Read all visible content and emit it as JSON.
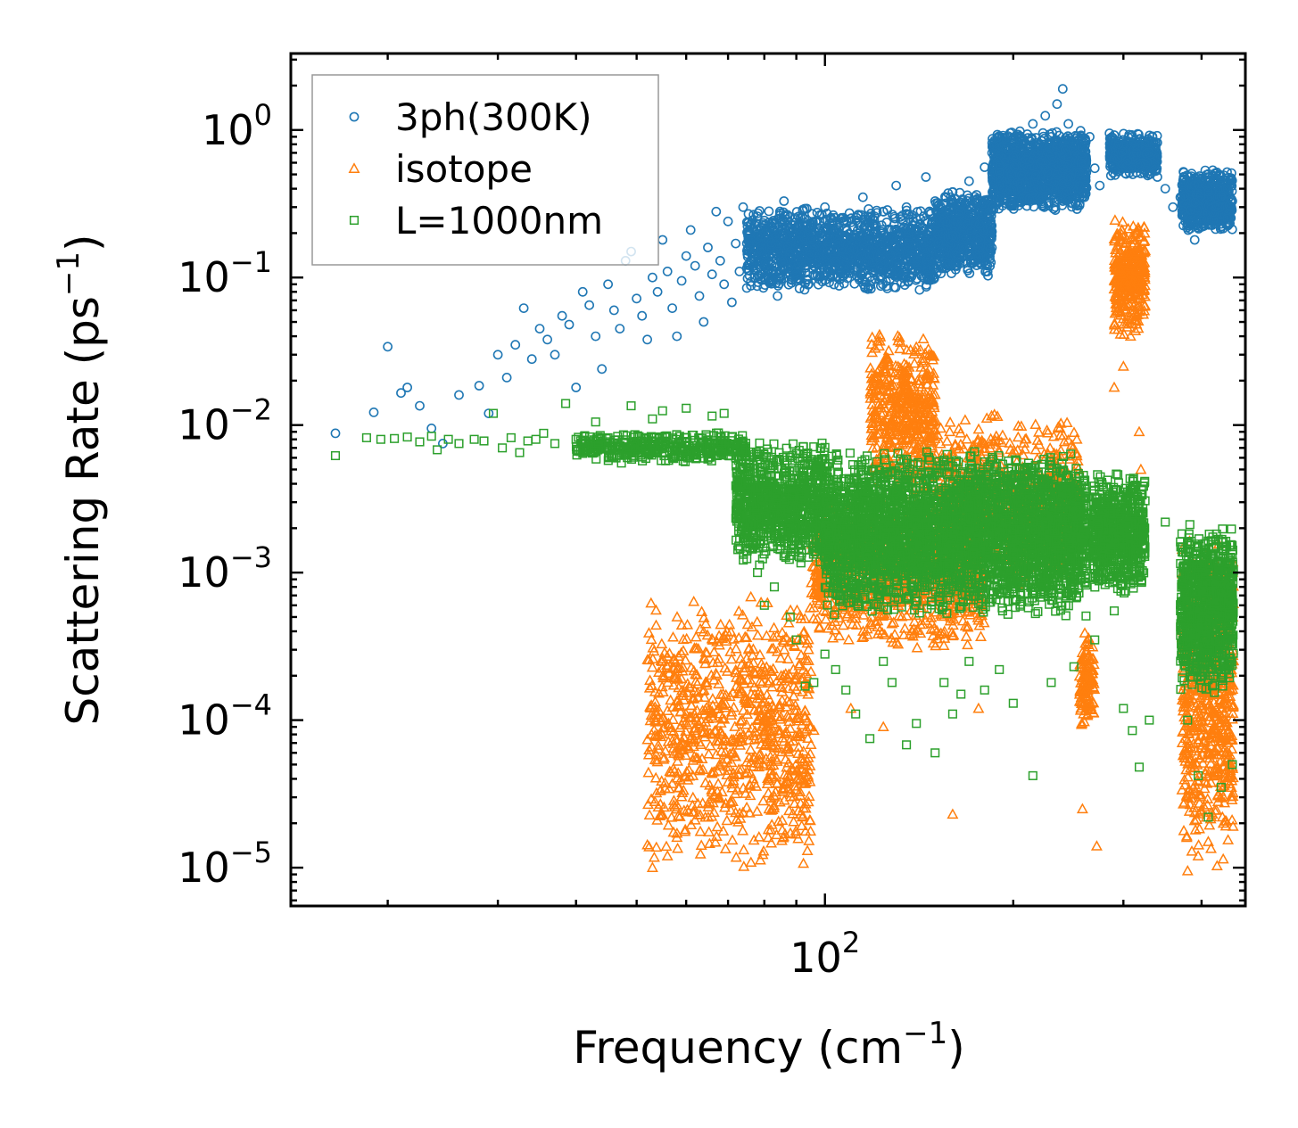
{
  "chart_data": {
    "type": "scatter",
    "title": "",
    "xlabel": "Frequency (cm",
    "xlabel_sup": "−1",
    "xlabel_close": ")",
    "ylabel": "Scattering Rate (ps",
    "ylabel_sup": "−1",
    "ylabel_close": ")",
    "xscale": "log",
    "yscale": "log",
    "xlim": [
      14,
      470
    ],
    "ylim": [
      5.5e-06,
      3.3
    ],
    "x_ticks": [
      {
        "value": 100,
        "base": "10",
        "exp": "2"
      }
    ],
    "y_ticks": [
      {
        "value": 1,
        "base": "10",
        "exp": "0"
      },
      {
        "value": 0.1,
        "base": "10",
        "exp": "−1"
      },
      {
        "value": 0.01,
        "base": "10",
        "exp": "−2"
      },
      {
        "value": 0.001,
        "base": "10",
        "exp": "−3"
      },
      {
        "value": 0.0001,
        "base": "10",
        "exp": "−4"
      },
      {
        "value": 1e-05,
        "base": "10",
        "exp": "−5"
      }
    ],
    "legend_position": "top-left",
    "series": [
      {
        "name": "3ph(300K)",
        "marker": "circle",
        "color": "#1f77b4",
        "points": [
          [
            16.5,
            0.0088
          ],
          [
            19.0,
            0.0122
          ],
          [
            20.0,
            0.034
          ],
          [
            21.0,
            0.0165
          ],
          [
            21.5,
            0.018
          ],
          [
            22.5,
            0.0135
          ],
          [
            23.5,
            0.0095
          ],
          [
            24.5,
            0.0075
          ],
          [
            26,
            0.016
          ],
          [
            28,
            0.0185
          ],
          [
            29,
            0.012
          ],
          [
            30,
            0.03
          ],
          [
            31,
            0.021
          ],
          [
            32,
            0.035
          ],
          [
            33,
            0.062
          ],
          [
            34,
            0.028
          ],
          [
            35,
            0.045
          ],
          [
            36,
            0.038
          ],
          [
            37,
            0.03
          ],
          [
            38,
            0.055
          ],
          [
            39,
            0.048
          ],
          [
            40,
            0.018
          ],
          [
            41,
            0.08
          ],
          [
            42,
            0.065
          ],
          [
            43,
            0.04
          ],
          [
            44,
            0.024
          ],
          [
            45,
            0.09
          ],
          [
            46,
            0.06
          ],
          [
            47,
            0.045
          ],
          [
            48,
            0.13
          ],
          [
            49,
            0.15
          ],
          [
            50,
            0.072
          ],
          [
            51,
            0.055
          ],
          [
            52,
            0.038
          ],
          [
            53,
            0.1
          ],
          [
            54,
            0.08
          ],
          [
            55,
            0.18
          ],
          [
            56,
            0.11
          ],
          [
            57,
            0.062
          ],
          [
            58,
            0.04
          ],
          [
            59,
            0.095
          ],
          [
            60,
            0.14
          ],
          [
            61,
            0.21
          ],
          [
            62,
            0.12
          ],
          [
            63,
            0.075
          ],
          [
            64,
            0.05
          ],
          [
            65,
            0.16
          ],
          [
            66,
            0.105
          ],
          [
            67,
            0.28
          ],
          [
            68,
            0.13
          ],
          [
            69,
            0.09
          ],
          [
            70,
            0.24
          ],
          [
            71,
            0.068
          ],
          [
            72,
            0.17
          ],
          [
            73,
            0.11
          ],
          [
            74,
            0.3
          ],
          [
            75,
            0.085
          ],
          [
            76,
            0.2
          ],
          [
            77,
            0.13
          ],
          [
            78,
            0.26
          ],
          [
            80,
            0.1
          ],
          [
            82,
            0.22
          ],
          [
            84,
            0.075
          ],
          [
            86,
            0.33
          ],
          [
            88,
            0.15
          ],
          [
            90,
            0.095
          ],
          [
            92,
            0.26
          ],
          [
            95,
            0.18
          ],
          [
            98,
            0.115
          ],
          [
            100,
            0.3
          ],
          [
            105,
            0.2
          ],
          [
            110,
            0.14
          ],
          [
            115,
            0.35
          ],
          [
            120,
            0.26
          ],
          [
            125,
            0.17
          ],
          [
            130,
            0.42
          ],
          [
            135,
            0.3
          ],
          [
            140,
            0.21
          ],
          [
            145,
            0.48
          ],
          [
            150,
            0.33
          ],
          [
            155,
            0.25
          ],
          [
            160,
            0.38
          ],
          [
            165,
            0.28
          ],
          [
            170,
            0.45
          ],
          [
            175,
            0.32
          ],
          [
            180,
            0.56
          ],
          [
            185,
            0.7
          ],
          [
            190,
            0.52
          ],
          [
            195,
            0.85
          ],
          [
            200,
            0.65
          ],
          [
            205,
            0.98
          ],
          [
            210,
            0.7
          ],
          [
            215,
            1.1
          ],
          [
            220,
            0.8
          ],
          [
            225,
            1.25
          ],
          [
            230,
            0.9
          ],
          [
            235,
            1.5
          ],
          [
            240,
            1.9
          ],
          [
            245,
            1.1
          ],
          [
            250,
            0.7
          ],
          [
            255,
            0.5
          ],
          [
            260,
            0.35
          ],
          [
            265,
            0.9
          ],
          [
            270,
            0.55
          ],
          [
            275,
            0.42
          ],
          [
            285,
            0.95
          ],
          [
            295,
            0.8
          ],
          [
            305,
            0.62
          ],
          [
            315,
            0.7
          ],
          [
            325,
            0.58
          ],
          [
            340,
            0.48
          ],
          [
            350,
            0.4
          ],
          [
            360,
            0.3
          ],
          [
            370,
            0.35
          ],
          [
            380,
            0.23
          ],
          [
            390,
            0.18
          ],
          [
            400,
            0.25
          ],
          [
            410,
            0.38
          ],
          [
            420,
            0.3
          ],
          [
            430,
            0.22
          ],
          [
            440,
            0.4
          ],
          [
            448,
            0.33
          ]
        ],
        "bands": [
          {
            "x_from": 75,
            "x_to": 150,
            "y_lo": 0.08,
            "y_hi": 0.3,
            "count": 1400
          },
          {
            "x_from": 150,
            "x_to": 185,
            "y_lo": 0.1,
            "y_hi": 0.4,
            "count": 650
          },
          {
            "x_from": 185,
            "x_to": 262,
            "y_lo": 0.28,
            "y_hi": 1.0,
            "count": 1400
          },
          {
            "x_from": 285,
            "x_to": 340,
            "y_lo": 0.48,
            "y_hi": 0.95,
            "count": 500
          },
          {
            "x_from": 372,
            "x_to": 448,
            "y_lo": 0.2,
            "y_hi": 0.55,
            "count": 650
          }
        ]
      },
      {
        "name": "isotope",
        "marker": "triangle",
        "color": "#ff7f0e",
        "points": [
          [
            53,
            1e-05
          ],
          [
            56,
            1.2e-05
          ],
          [
            58,
            1.6e-05
          ],
          [
            62,
            2.1e-05
          ],
          [
            65,
            2.7e-05
          ],
          [
            70,
            3.8e-05
          ],
          [
            75,
            5.2e-05
          ],
          [
            82,
            7.8e-05
          ],
          [
            88,
            3.2e-05
          ],
          [
            92,
            2.2e-05
          ],
          [
            96,
            8.5e-05
          ],
          [
            110,
            0.00012
          ],
          [
            124,
            9e-05
          ],
          [
            160,
            2.3e-05
          ],
          [
            176,
            0.00012
          ],
          [
            258,
            2.5e-05
          ],
          [
            272,
            1.4e-05
          ],
          [
            290,
            0.018
          ],
          [
            300,
            0.025
          ],
          [
            308,
            0.04
          ],
          [
            318,
            0.009
          ],
          [
            320,
            0.005
          ],
          [
            380,
            9.5e-06
          ],
          [
            395,
            1.2e-05
          ],
          [
            410,
            1.5e-05
          ],
          [
            432,
            2.2e-05
          ],
          [
            445,
            3.5e-05
          ]
        ],
        "bands": [
          {
            "x_from": 52,
            "x_to": 95,
            "y_lo": 1e-05,
            "y_hi": 0.0007,
            "count": 900
          },
          {
            "x_from": 95,
            "x_to": 180,
            "y_lo": 0.0003,
            "y_hi": 0.003,
            "count": 900
          },
          {
            "x_from": 118,
            "x_to": 150,
            "y_lo": 0.003,
            "y_hi": 0.045,
            "count": 500
          },
          {
            "x_from": 150,
            "x_to": 255,
            "y_lo": 0.0008,
            "y_hi": 0.012,
            "count": 700
          },
          {
            "x_from": 255,
            "x_to": 270,
            "y_lo": 8e-05,
            "y_hi": 0.0004,
            "count": 120
          },
          {
            "x_from": 290,
            "x_to": 325,
            "y_lo": 0.04,
            "y_hi": 0.25,
            "count": 350
          },
          {
            "x_from": 372,
            "x_to": 450,
            "y_lo": 1e-05,
            "y_hi": 0.002,
            "count": 650
          }
        ]
      },
      {
        "name": "L=1000nm",
        "marker": "square",
        "color": "#2ca02c",
        "points": [
          [
            16.5,
            0.0062
          ],
          [
            18.5,
            0.0082
          ],
          [
            19.5,
            0.008
          ],
          [
            20.5,
            0.0081
          ],
          [
            21.5,
            0.0083
          ],
          [
            22.5,
            0.0077
          ],
          [
            23.5,
            0.0084
          ],
          [
            24,
            0.0068
          ],
          [
            25,
            0.008
          ],
          [
            26,
            0.0075
          ],
          [
            27.5,
            0.008
          ],
          [
            28.5,
            0.0078
          ],
          [
            29.5,
            0.012
          ],
          [
            30.5,
            0.007
          ],
          [
            31.5,
            0.0082
          ],
          [
            32.5,
            0.0065
          ],
          [
            33.5,
            0.0078
          ],
          [
            34.5,
            0.008
          ],
          [
            35.5,
            0.0088
          ],
          [
            37,
            0.0075
          ],
          [
            38.5,
            0.014
          ],
          [
            40,
            0.008
          ],
          [
            41.5,
            0.007
          ],
          [
            43,
            0.0105
          ],
          [
            45,
            0.0082
          ],
          [
            47,
            0.0072
          ],
          [
            49,
            0.0135
          ],
          [
            51,
            0.0078
          ],
          [
            53,
            0.011
          ],
          [
            55,
            0.0125
          ],
          [
            57,
            0.0074
          ],
          [
            60,
            0.013
          ],
          [
            63,
            0.007
          ],
          [
            66,
            0.0115
          ],
          [
            69,
            0.012
          ],
          [
            72,
            0.006
          ],
          [
            75,
            0.0014
          ],
          [
            78,
            0.001
          ],
          [
            80,
            0.0006
          ],
          [
            83,
            0.0008
          ],
          [
            86,
            0.0013
          ],
          [
            88,
            0.0005
          ],
          [
            90,
            0.00035
          ],
          [
            93,
            0.00017
          ],
          [
            96,
            0.00018
          ],
          [
            100,
            0.00028
          ],
          [
            104,
            0.00022
          ],
          [
            108,
            0.00016
          ],
          [
            112,
            0.00011
          ],
          [
            118,
            7.5e-05
          ],
          [
            124,
            0.00025
          ],
          [
            128,
            0.00018
          ],
          [
            135,
            6.8e-05
          ],
          [
            140,
            9.5e-05
          ],
          [
            150,
            6e-05
          ],
          [
            155,
            0.00018
          ],
          [
            160,
            0.00011
          ],
          [
            165,
            0.00015
          ],
          [
            170,
            0.00025
          ],
          [
            180,
            0.00016
          ],
          [
            190,
            0.00022
          ],
          [
            200,
            0.00013
          ],
          [
            215,
            4.2e-05
          ],
          [
            230,
            0.00018
          ],
          [
            250,
            0.00023
          ],
          [
            270,
            0.00035
          ],
          [
            290,
            0.00055
          ],
          [
            300,
            0.00012
          ],
          [
            310,
            8.5e-05
          ],
          [
            318,
            4.8e-05
          ],
          [
            330,
            0.0001
          ],
          [
            350,
            0.0022
          ],
          [
            380,
            0.0001
          ],
          [
            395,
            4.2e-05
          ],
          [
            410,
            2.2e-05
          ],
          [
            430,
            3.5e-05
          ],
          [
            448,
            5e-05
          ]
        ],
        "bands": [
          {
            "x_from": 40,
            "x_to": 75,
            "y_lo": 0.0055,
            "y_hi": 0.009,
            "count": 400
          },
          {
            "x_from": 72,
            "x_to": 100,
            "y_lo": 0.0011,
            "y_hi": 0.008,
            "count": 900
          },
          {
            "x_from": 100,
            "x_to": 262,
            "y_lo": 0.0005,
            "y_hi": 0.007,
            "count": 3600
          },
          {
            "x_from": 268,
            "x_to": 325,
            "y_lo": 0.0007,
            "y_hi": 0.005,
            "count": 700
          },
          {
            "x_from": 370,
            "x_to": 450,
            "y_lo": 0.00015,
            "y_hi": 0.0022,
            "count": 900
          }
        ]
      }
    ]
  }
}
